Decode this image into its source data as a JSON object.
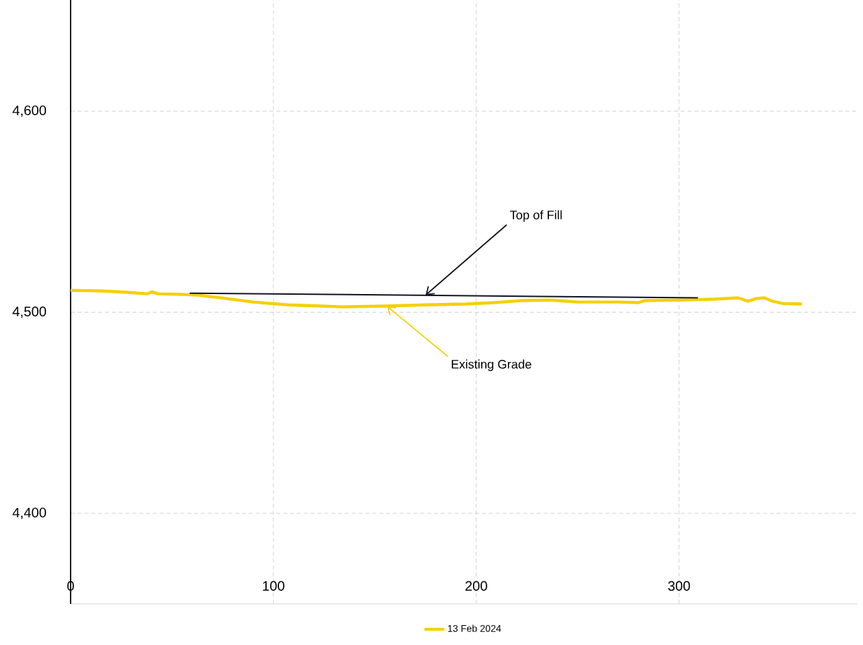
{
  "chart_data": {
    "type": "line",
    "series": [
      {
        "name": "13 Feb 2024",
        "color": "#f5d000",
        "x": [
          0,
          16,
          28,
          38,
          40,
          43,
          55,
          63,
          77,
          90,
          107,
          124,
          134,
          155,
          175,
          195,
          209,
          222,
          236,
          250,
          270,
          280,
          283,
          300,
          317,
          329,
          334,
          338,
          342,
          346,
          351,
          360
        ],
        "values": [
          4510.9,
          4510.6,
          4509.9,
          4509.2,
          4510.2,
          4509.2,
          4508.9,
          4508.5,
          4506.8,
          4505.1,
          4503.7,
          4503.1,
          4502.7,
          4503.1,
          4503.7,
          4504.1,
          4504.8,
          4505.8,
          4506.1,
          4505.1,
          4505.1,
          4504.8,
          4505.8,
          4506.1,
          4506.5,
          4507.2,
          4505.5,
          4506.8,
          4507.2,
          4505.5,
          4504.4,
          4504.1
        ]
      },
      {
        "color": "#111122",
        "x": [
          59,
          309
        ],
        "values": [
          4509.5,
          4507.2
        ]
      }
    ],
    "xlim": [
      0,
      388
    ],
    "ylim": [
      4355,
      4657
    ],
    "xticks": [
      0,
      100,
      200,
      300
    ],
    "yticks": [
      {
        "value": 4400,
        "label": "4,400"
      },
      {
        "value": 4500,
        "label": "4,500"
      },
      {
        "value": 4600,
        "label": "4,600"
      }
    ],
    "annotations": [
      {
        "text": "Top of Fill",
        "x": 175,
        "y": 4508.5
      },
      {
        "text": "Existing Grade",
        "x": 156,
        "y": 4503
      }
    ],
    "grid": true,
    "legend": "bottom",
    "marker": "none",
    "line_style": "solid"
  }
}
